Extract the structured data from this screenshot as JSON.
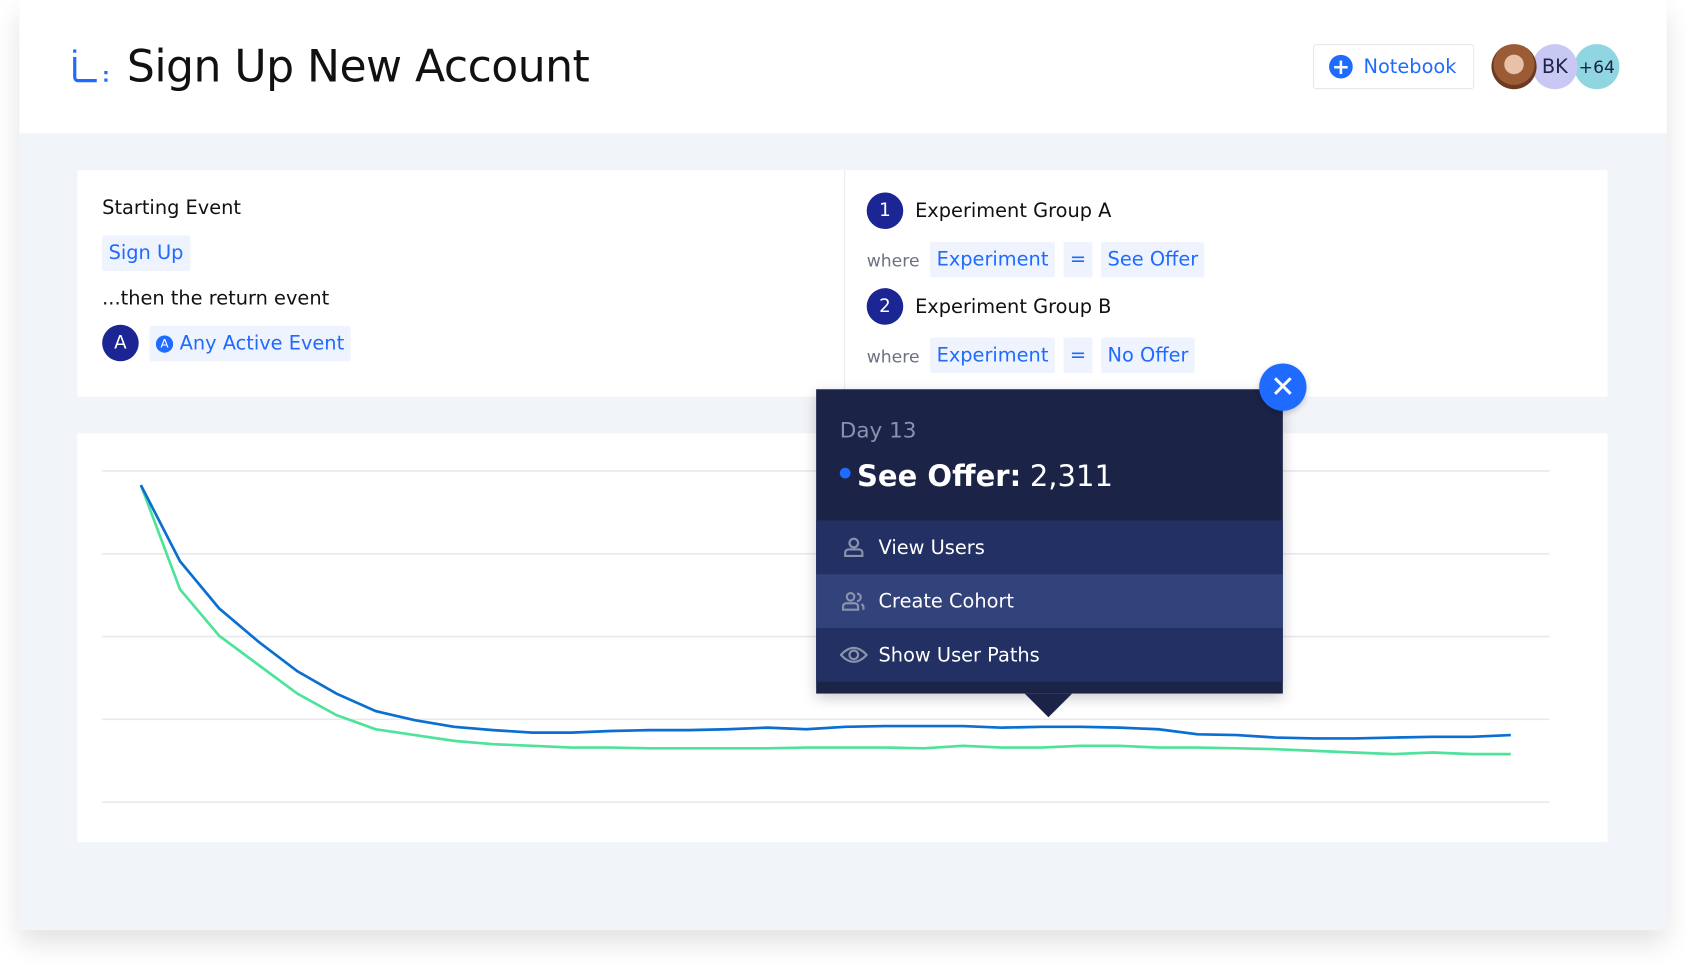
{
  "header": {
    "title": "Sign Up New Account",
    "notebook_label": "Notebook",
    "avatars": [
      {
        "initials": ""
      },
      {
        "initials": "BK"
      },
      {
        "initials": "+64"
      }
    ]
  },
  "query": {
    "starting_event_label": "Starting Event",
    "starting_event": "Sign Up",
    "return_event_label": "...then the return event",
    "return_badge": "A",
    "return_event": "Any Active Event",
    "groups": [
      {
        "number": "1",
        "name": "Experiment Group A",
        "where": "where",
        "property": "Experiment",
        "operator": "=",
        "value": "See Offer"
      },
      {
        "number": "2",
        "name": "Experiment Group B",
        "where": "where",
        "property": "Experiment",
        "operator": "=",
        "value": "No Offer"
      }
    ]
  },
  "tooltip": {
    "day": "Day 13",
    "series_label": "See Offer:",
    "series_value": "2,311",
    "menu": [
      {
        "label": "View Users",
        "icon": "user-icon"
      },
      {
        "label": "Create Cohort",
        "icon": "users-icon"
      },
      {
        "label": "Show User Paths",
        "icon": "eye-icon"
      }
    ],
    "close_icon": "close-icon"
  },
  "colors": {
    "accent": "#1f6bff",
    "navy": "#1b2347",
    "series_a": "#0a6fd1",
    "series_b": "#4de39a"
  },
  "chart_data": {
    "type": "line",
    "grid": true,
    "ylim": [
      0,
      4
    ],
    "series": [
      {
        "color": "#0a6fd1",
        "values": [
          3.83,
          2.91,
          2.34,
          1.94,
          1.58,
          1.31,
          1.1,
          0.99,
          0.91,
          0.87,
          0.84,
          0.84,
          0.86,
          0.87,
          0.87,
          0.88,
          0.9,
          0.88,
          0.91,
          0.92,
          0.92,
          0.92,
          0.9,
          0.91,
          0.91,
          0.9,
          0.88,
          0.82,
          0.81,
          0.78,
          0.77,
          0.77,
          0.78,
          0.79,
          0.79,
          0.81
        ]
      },
      {
        "color": "#4de39a",
        "values": [
          3.83,
          2.57,
          2.01,
          1.66,
          1.31,
          1.05,
          0.88,
          0.81,
          0.74,
          0.7,
          0.68,
          0.66,
          0.66,
          0.65,
          0.65,
          0.65,
          0.65,
          0.66,
          0.66,
          0.66,
          0.65,
          0.68,
          0.66,
          0.66,
          0.68,
          0.68,
          0.66,
          0.66,
          0.65,
          0.64,
          0.62,
          0.6,
          0.58,
          0.6,
          0.58,
          0.58
        ]
      }
    ]
  }
}
